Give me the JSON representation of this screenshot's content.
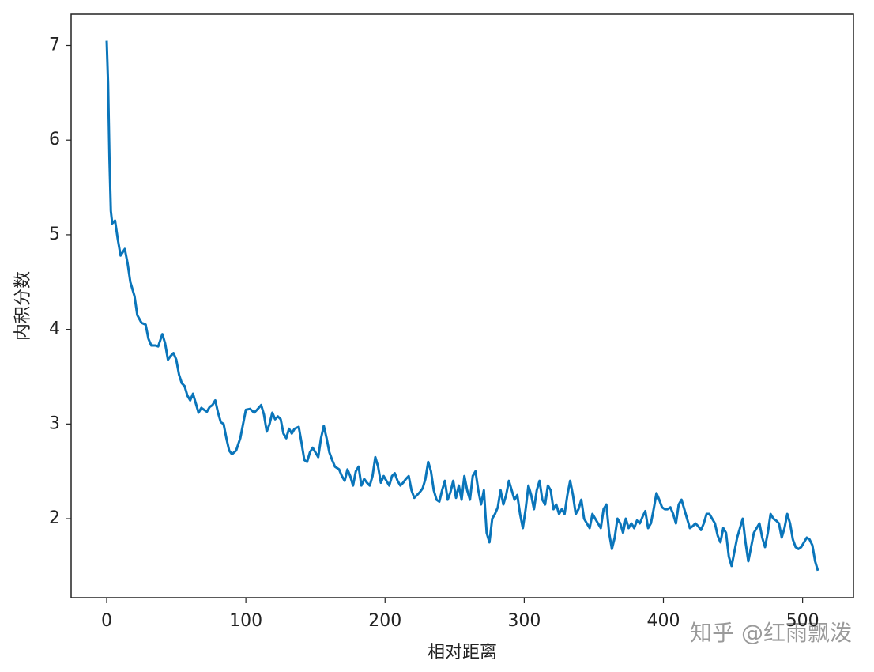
{
  "chart_data": {
    "type": "line",
    "x_label": "相对距离",
    "y_label": "内积分数",
    "annotation": "知乎 @红雨飘泼",
    "xlim": [
      -25.55,
      536.55
    ],
    "ylim": [
      1.165,
      7.33
    ],
    "xticks": [
      0,
      100,
      200,
      300,
      400,
      500
    ],
    "yticks": [
      2,
      3,
      4,
      5,
      6,
      7
    ],
    "grid": false,
    "series": [
      {
        "color": "#0a75ba",
        "x": [
          0,
          1,
          2,
          3,
          4,
          6,
          8,
          10,
          13,
          15,
          17,
          20,
          22,
          25,
          28,
          30,
          32,
          35,
          37,
          40,
          42,
          44,
          46,
          48,
          50,
          52,
          54,
          56,
          58,
          60,
          62,
          64,
          66,
          68,
          70,
          72,
          74,
          76,
          78,
          80,
          82,
          84,
          86,
          88,
          90,
          93,
          96,
          98,
          100,
          103,
          106,
          108,
          111,
          113,
          115,
          117,
          119,
          121,
          123,
          125,
          127,
          129,
          131,
          133,
          135,
          138,
          140,
          142,
          144,
          146,
          148,
          150,
          152,
          154,
          156,
          158,
          160,
          162,
          164,
          167,
          169,
          171,
          173,
          175,
          177,
          179,
          181,
          183,
          185,
          187,
          189,
          191,
          193,
          195,
          197,
          199,
          201,
          203,
          205,
          207,
          209,
          211,
          213,
          215,
          217,
          219,
          221,
          223,
          225,
          227,
          229,
          231,
          233,
          235,
          237,
          239,
          241,
          243,
          245,
          247,
          249,
          251,
          253,
          255,
          257,
          259,
          261,
          263,
          265,
          267,
          269,
          271,
          273,
          275,
          277,
          279,
          281,
          283,
          285,
          287,
          289,
          291,
          293,
          295,
          297,
          299,
          301,
          303,
          305,
          307,
          309,
          311,
          313,
          315,
          317,
          319,
          321,
          323,
          325,
          327,
          329,
          331,
          333,
          335,
          337,
          339,
          341,
          343,
          345,
          347,
          349,
          351,
          353,
          355,
          357,
          359,
          361,
          363,
          365,
          367,
          369,
          371,
          373,
          375,
          377,
          379,
          381,
          383,
          385,
          387,
          389,
          391,
          393,
          395,
          397,
          399,
          401,
          403,
          405,
          407,
          409,
          411,
          413,
          415,
          417,
          419,
          421,
          423,
          425,
          427,
          429,
          431,
          433,
          435,
          437,
          439,
          441,
          443,
          445,
          447,
          449,
          451,
          453,
          455,
          457,
          459,
          461,
          463,
          465,
          467,
          469,
          471,
          473,
          475,
          477,
          479,
          481,
          483,
          485,
          487,
          489,
          491,
          493,
          495,
          497,
          499,
          501,
          503,
          505,
          507,
          509,
          511
        ],
        "values": [
          7.05,
          6.6,
          5.8,
          5.25,
          5.12,
          5.15,
          4.95,
          4.78,
          4.85,
          4.7,
          4.5,
          4.35,
          4.15,
          4.07,
          4.05,
          3.9,
          3.83,
          3.83,
          3.82,
          3.95,
          3.85,
          3.68,
          3.72,
          3.75,
          3.68,
          3.52,
          3.43,
          3.4,
          3.3,
          3.25,
          3.32,
          3.22,
          3.12,
          3.17,
          3.15,
          3.13,
          3.18,
          3.2,
          3.25,
          3.12,
          3.02,
          3.0,
          2.85,
          2.72,
          2.68,
          2.72,
          2.85,
          3.0,
          3.15,
          3.16,
          3.12,
          3.15,
          3.2,
          3.1,
          2.92,
          3.0,
          3.12,
          3.05,
          3.08,
          3.05,
          2.9,
          2.85,
          2.95,
          2.9,
          2.95,
          2.97,
          2.8,
          2.62,
          2.6,
          2.7,
          2.75,
          2.7,
          2.65,
          2.85,
          2.98,
          2.85,
          2.7,
          2.62,
          2.55,
          2.52,
          2.45,
          2.4,
          2.52,
          2.45,
          2.35,
          2.5,
          2.55,
          2.35,
          2.42,
          2.38,
          2.35,
          2.45,
          2.65,
          2.55,
          2.38,
          2.45,
          2.4,
          2.35,
          2.45,
          2.48,
          2.4,
          2.35,
          2.38,
          2.42,
          2.45,
          2.3,
          2.22,
          2.25,
          2.28,
          2.32,
          2.42,
          2.6,
          2.5,
          2.3,
          2.2,
          2.18,
          2.3,
          2.4,
          2.2,
          2.28,
          2.4,
          2.22,
          2.35,
          2.2,
          2.45,
          2.3,
          2.2,
          2.45,
          2.5,
          2.3,
          2.15,
          2.3,
          1.85,
          1.75,
          2.0,
          2.05,
          2.12,
          2.3,
          2.15,
          2.25,
          2.4,
          2.3,
          2.2,
          2.25,
          2.05,
          1.9,
          2.1,
          2.35,
          2.25,
          2.1,
          2.3,
          2.4,
          2.2,
          2.15,
          2.35,
          2.3,
          2.1,
          2.15,
          2.05,
          2.1,
          2.05,
          2.25,
          2.4,
          2.25,
          2.05,
          2.1,
          2.2,
          2.0,
          1.95,
          1.9,
          2.05,
          2.0,
          1.95,
          1.9,
          2.1,
          2.15,
          1.85,
          1.68,
          1.8,
          2.0,
          1.95,
          1.85,
          2.0,
          1.9,
          1.95,
          1.9,
          1.98,
          1.95,
          2.02,
          2.08,
          1.9,
          1.95,
          2.1,
          2.27,
          2.2,
          2.12,
          2.1,
          2.1,
          2.12,
          2.05,
          1.95,
          2.15,
          2.2,
          2.1,
          2.0,
          1.9,
          1.92,
          1.95,
          1.92,
          1.88,
          1.95,
          2.05,
          2.05,
          2.0,
          1.95,
          1.82,
          1.75,
          1.9,
          1.85,
          1.6,
          1.5,
          1.65,
          1.8,
          1.9,
          2.0,
          1.75,
          1.55,
          1.7,
          1.85,
          1.9,
          1.95,
          1.8,
          1.7,
          1.85,
          2.05,
          2.0,
          1.98,
          1.95,
          1.8,
          1.9,
          2.05,
          1.95,
          1.78,
          1.7,
          1.68,
          1.7,
          1.75,
          1.8,
          1.78,
          1.72,
          1.55,
          1.45
        ]
      }
    ]
  }
}
